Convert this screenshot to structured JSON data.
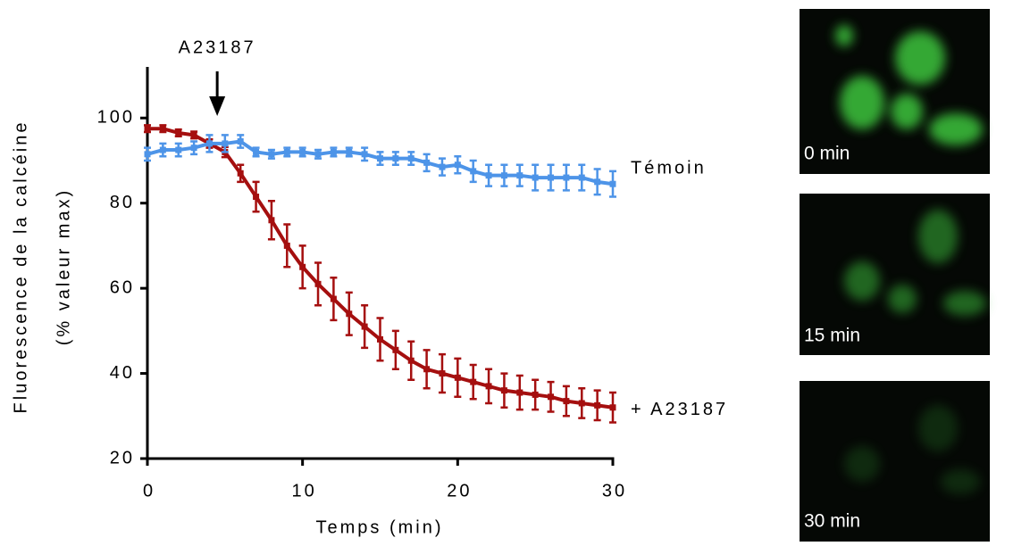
{
  "chart_data": {
    "type": "line",
    "ylabel": [
      "Fluorescence de la calcéine",
      "(% valeur max)"
    ],
    "xlabel": "Temps (min)",
    "annotation": {
      "text": "A23187",
      "x": 4.5
    },
    "x": [
      0,
      1,
      2,
      3,
      4,
      5,
      6,
      7,
      8,
      9,
      10,
      11,
      12,
      13,
      14,
      15,
      16,
      17,
      18,
      19,
      20,
      21,
      22,
      23,
      24,
      25,
      26,
      27,
      28,
      29,
      30
    ],
    "series": [
      {
        "name": "+ A23187",
        "color": "#a50f0f",
        "values": [
          97.5,
          97.5,
          96.5,
          96,
          94,
          92,
          87,
          81.5,
          76,
          70,
          65,
          61,
          57.5,
          54,
          51,
          48,
          45.5,
          43,
          41,
          40,
          39,
          38,
          37,
          36,
          35.5,
          35,
          34.5,
          33.5,
          33,
          32.5,
          32
        ],
        "errors": [
          0.8,
          0.8,
          0.8,
          0.8,
          1,
          1.2,
          2,
          3.5,
          4.5,
          5,
          5,
          5,
          5,
          5,
          5,
          5,
          4.5,
          4.5,
          4.5,
          4.5,
          4.5,
          4,
          4,
          4,
          4,
          3.5,
          3.5,
          3.5,
          3.5,
          3.5,
          3.5
        ]
      },
      {
        "name": "Témoin",
        "color": "#4d94e8",
        "values": [
          91.5,
          92.5,
          92.5,
          93,
          94,
          94,
          94.5,
          92,
          91.5,
          92,
          92,
          91.5,
          92,
          92,
          91.5,
          90.5,
          90.5,
          90.5,
          89.5,
          88.5,
          89,
          87.5,
          86.5,
          86.5,
          86.5,
          86,
          86,
          86,
          86,
          85,
          84.5
        ],
        "errors": [
          1.5,
          1.5,
          1.5,
          1.5,
          2,
          2,
          1.5,
          1,
          1,
          1,
          1,
          1,
          1,
          1,
          1.5,
          1.5,
          1.5,
          1.5,
          2,
          2,
          2,
          2.5,
          2.5,
          2.5,
          2.5,
          3,
          3,
          3,
          3,
          3,
          3
        ]
      }
    ],
    "xlim": [
      0,
      30
    ],
    "xticks": [
      0,
      10,
      20,
      30
    ],
    "ylim": [
      20,
      112
    ],
    "yticks": [
      20,
      40,
      60,
      80,
      100
    ]
  },
  "panels": [
    {
      "label": "0 min"
    },
    {
      "label": "15 min"
    },
    {
      "label": "30 min"
    }
  ]
}
